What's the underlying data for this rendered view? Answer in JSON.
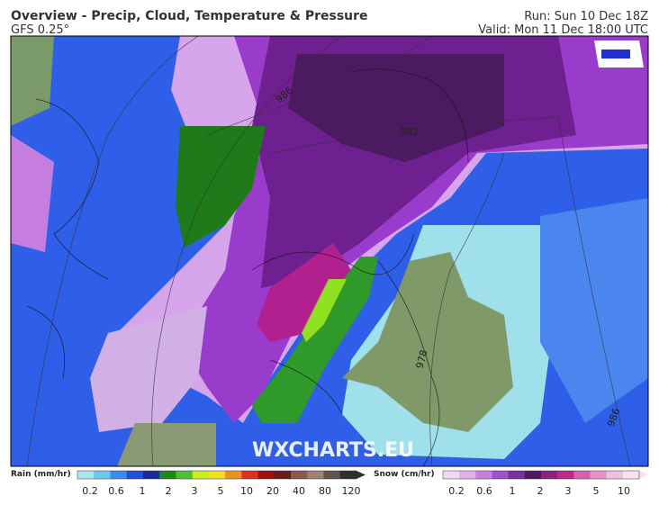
{
  "header": {
    "title": "Overview - Precip, Cloud, Temperature & Pressure",
    "model": "GFS 0.25°",
    "run": "Run: Sun 10 Dec 18Z",
    "valid": "Valid: Mon 11 Dec 18:00 UTC"
  },
  "map": {
    "watermark": "WXCHARTS.EU",
    "isobar_labels": [
      "986",
      "982",
      "978",
      "986"
    ]
  },
  "legend": {
    "rain": {
      "label": "Rain (mm/hr)",
      "ticks": [
        "0.2",
        "0.6",
        "1",
        "2",
        "3",
        "5",
        "10",
        "20",
        "40",
        "80",
        "120"
      ]
    },
    "snow": {
      "label": "Snow (cm/hr)",
      "ticks": [
        "0.2",
        "0.6",
        "1",
        "2",
        "3",
        "5",
        "10"
      ]
    }
  }
}
